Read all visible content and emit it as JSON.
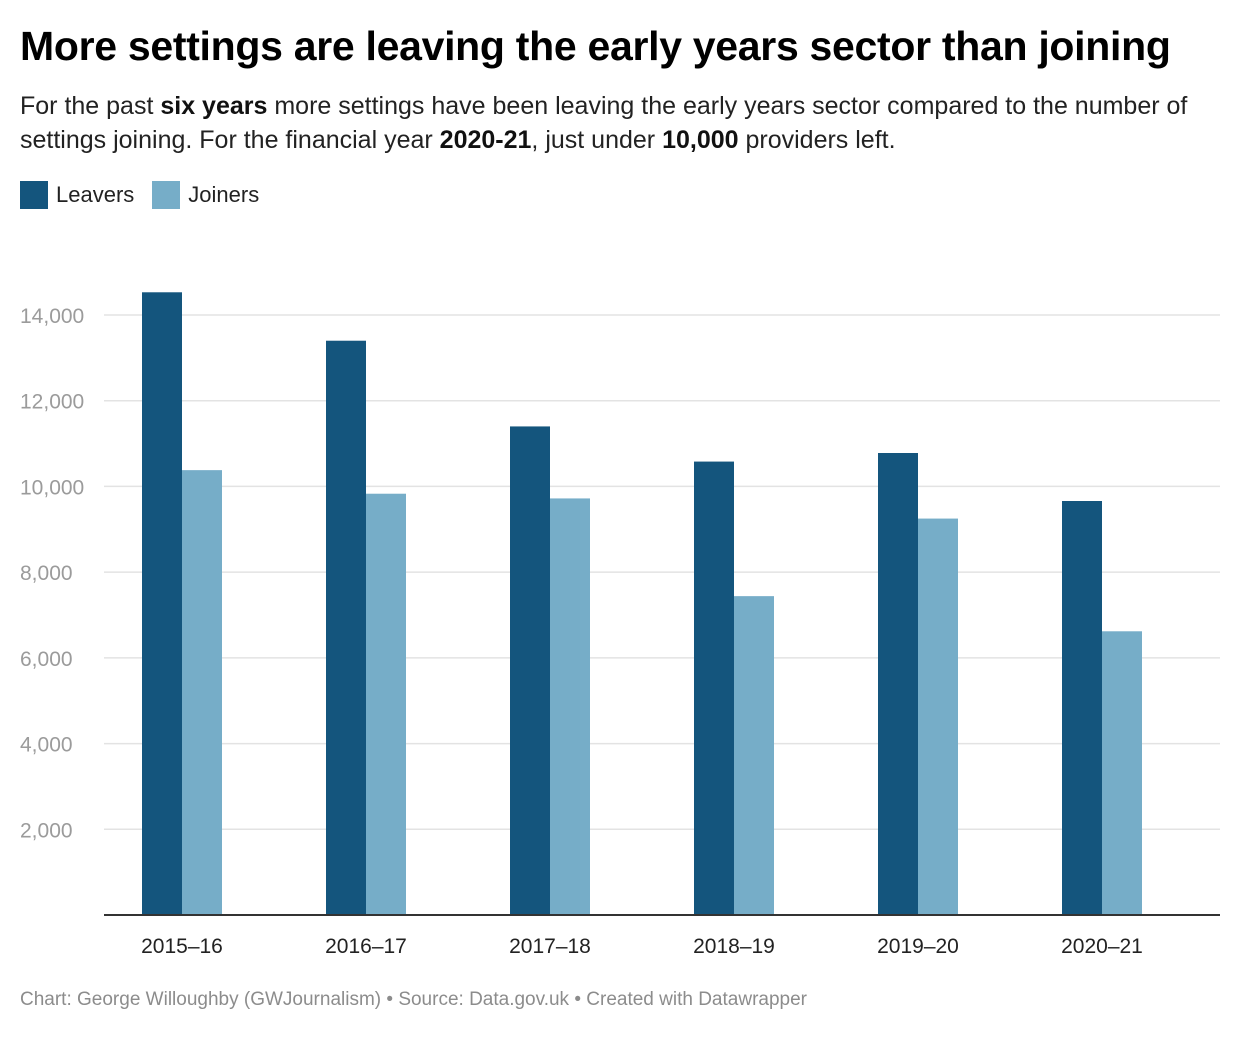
{
  "header": {
    "title": "More settings are leaving the early years sector than joining",
    "subtitle_parts": [
      {
        "text": "For the past ",
        "bold": false
      },
      {
        "text": "six years",
        "bold": true
      },
      {
        "text": " more settings have been leaving the early years sector compared to the number of settings joining. For the financial year ",
        "bold": false
      },
      {
        "text": "2020-21",
        "bold": true
      },
      {
        "text": ", just under ",
        "bold": false
      },
      {
        "text": "10,000",
        "bold": true
      },
      {
        "text": " providers left.",
        "bold": false
      }
    ]
  },
  "footer": {
    "credit": "Chart: George Willoughby (GWJournalism) • Source: Data.gov.uk • Created with Datawrapper"
  },
  "colors": {
    "leavers": "#14557d",
    "joiners": "#76adc8",
    "gridline": "#e3e3e3",
    "baseline": "#333333"
  },
  "chart_data": {
    "type": "bar",
    "categories": [
      "2015–16",
      "2016–17",
      "2017–18",
      "2018–19",
      "2019–20",
      "2020–21"
    ],
    "series": [
      {
        "name": "Leavers",
        "color": "#14557d",
        "values": [
          14530,
          13400,
          11400,
          10580,
          10780,
          9660
        ]
      },
      {
        "name": "Joiners",
        "color": "#76adc8",
        "values": [
          10380,
          9830,
          9720,
          7440,
          9250,
          6620
        ]
      }
    ],
    "ylim": [
      0,
      14000
    ],
    "yticks": [
      2000,
      4000,
      6000,
      8000,
      10000,
      12000,
      14000
    ],
    "ytick_labels": [
      "2,000",
      "4,000",
      "6,000",
      "8,000",
      "10,000",
      "12,000",
      "14,000"
    ],
    "grid": true,
    "legend_position": "top-left",
    "xlabel": "",
    "ylabel": ""
  }
}
